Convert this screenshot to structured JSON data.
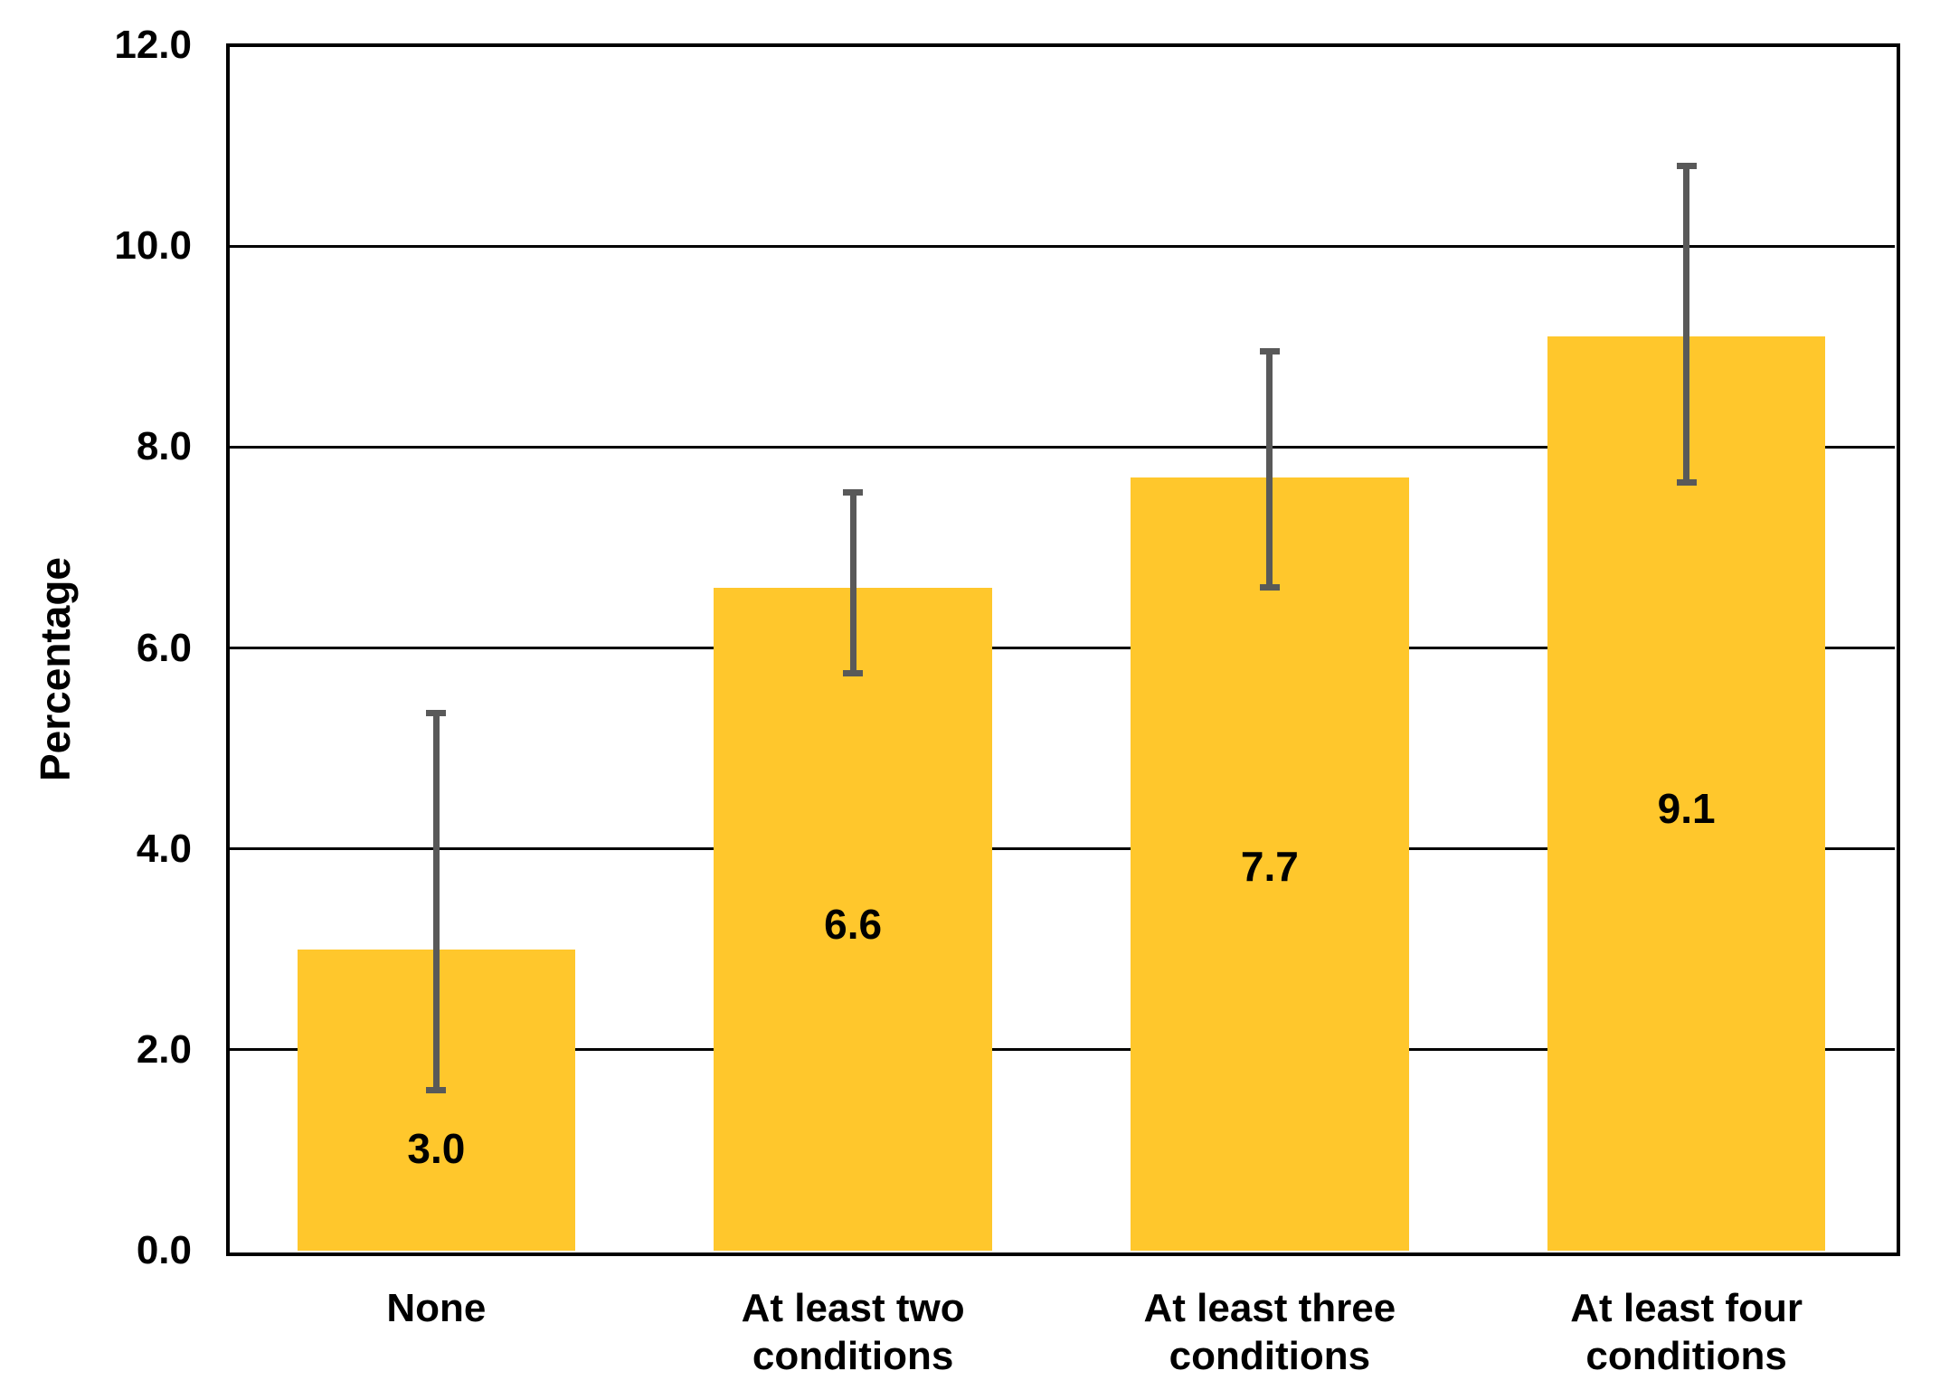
{
  "chart_data": {
    "type": "bar",
    "title": "",
    "xlabel": "",
    "ylabel": "Percentage",
    "categories": [
      "None",
      "At least two\nconditions",
      "At least three\nconditions",
      "At least four\nconditions"
    ],
    "values": [
      3.0,
      6.6,
      7.7,
      9.1
    ],
    "data_labels": [
      "3.0",
      "6.6",
      "7.7",
      "9.1"
    ],
    "error_low": [
      1.6,
      5.75,
      6.6,
      7.65
    ],
    "error_high": [
      5.35,
      7.55,
      8.95,
      10.8
    ],
    "label_positions": [
      1.02,
      3.25,
      3.83,
      4.4
    ],
    "ylim": [
      0,
      12
    ],
    "ytick_step": 2,
    "ytick_labels": [
      "0.0",
      "2.0",
      "4.0",
      "6.0",
      "8.0",
      "10.0",
      "12.0"
    ],
    "grid": true,
    "legend": "none",
    "colors": {
      "bar": "#FFC72C",
      "error_bar": "#595959",
      "axis": "#000000",
      "text": "#000000",
      "background": "#FFFFFF"
    }
  }
}
